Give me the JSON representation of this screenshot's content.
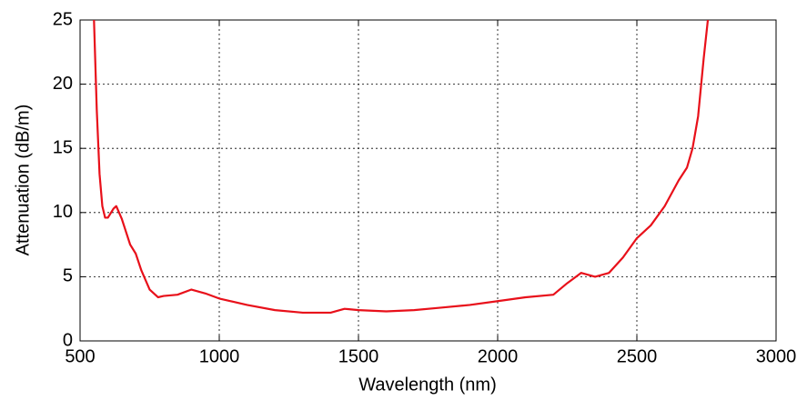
{
  "chart_data": {
    "type": "line",
    "x_label": "Wavelength (nm)",
    "y_label": "Attenuation (dB/m)",
    "x": [
      550,
      560,
      570,
      580,
      590,
      600,
      620,
      630,
      650,
      680,
      700,
      720,
      750,
      780,
      800,
      850,
      900,
      950,
      1000,
      1100,
      1200,
      1300,
      1400,
      1450,
      1500,
      1600,
      1700,
      1800,
      1900,
      2000,
      2100,
      2200,
      2250,
      2300,
      2350,
      2400,
      2450,
      2500,
      2550,
      2600,
      2650,
      2680,
      2700,
      2720,
      2740,
      2755
    ],
    "series": [
      {
        "name": "Attenuation",
        "color": "#e8101a",
        "values": [
          25,
          18,
          13,
          10.5,
          9.6,
          9.6,
          10.3,
          10.5,
          9.5,
          7.5,
          6.8,
          5.5,
          4,
          3.4,
          3.5,
          3.6,
          4.0,
          3.7,
          3.3,
          2.8,
          2.4,
          2.2,
          2.2,
          2.5,
          2.4,
          2.3,
          2.4,
          2.6,
          2.8,
          3.1,
          3.4,
          3.6,
          4.5,
          5.3,
          5.0,
          5.3,
          6.5,
          8.0,
          9.0,
          10.5,
          12.5,
          13.5,
          15,
          17.5,
          22,
          25
        ]
      }
    ],
    "xlim": [
      500,
      3000
    ],
    "xticks": [
      500,
      1000,
      1500,
      2000,
      2500,
      3000
    ],
    "ylim": [
      0,
      25
    ],
    "yticks": [
      0,
      5,
      10,
      15,
      20,
      25
    ],
    "grid": true
  }
}
